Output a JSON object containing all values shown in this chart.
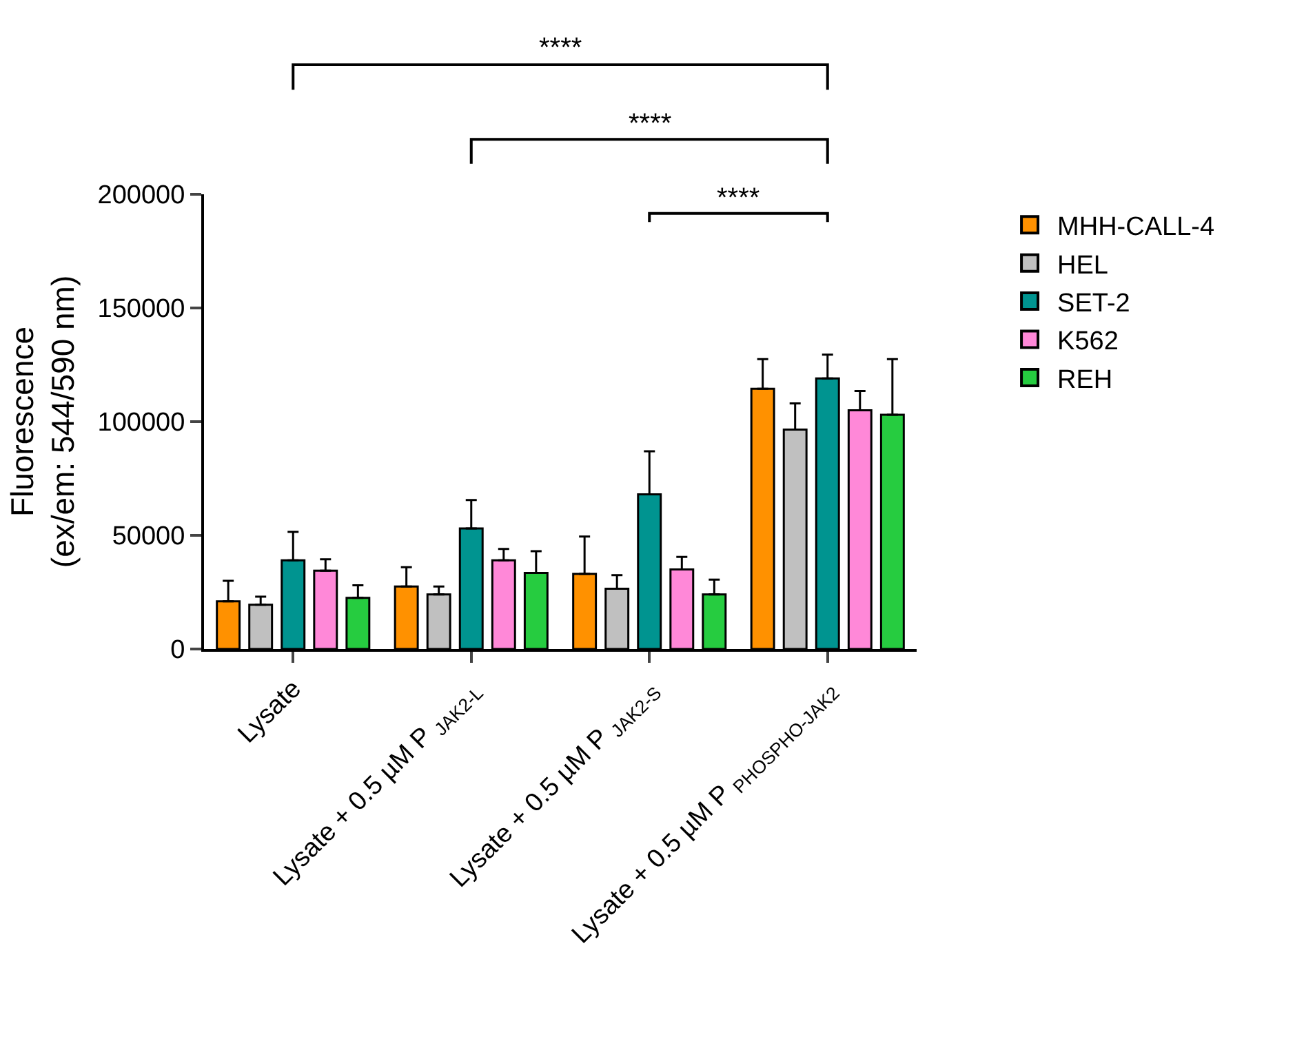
{
  "chart_data": {
    "type": "bar",
    "ylabel": "Fluorescence\n(ex/em: 544/590 nm)",
    "categories": [
      "Lysate",
      "Lysate + 0.5 µM P $_{JAK2-L}$",
      "Lysate + 0.5 µM P $_{JAK2-S}$",
      "Lysate + 0.5 µM P $_{PHOSPHO-JAK2}$"
    ],
    "series": [
      {
        "name": "MHH-CALL-4",
        "color": "#ff9100",
        "values": [
          21000,
          27500,
          33000,
          114500
        ],
        "errors": [
          [
            21000,
            30000
          ],
          [
            27500,
            36000
          ],
          [
            33000,
            49500
          ],
          [
            114500,
            127500
          ]
        ]
      },
      {
        "name": "HEL",
        "color": "#c0c0c0",
        "values": [
          19500,
          24000,
          26500,
          96500
        ],
        "errors": [
          [
            19500,
            23000
          ],
          [
            24000,
            27500
          ],
          [
            26500,
            32500
          ],
          [
            96500,
            108000
          ]
        ]
      },
      {
        "name": "SET-2",
        "color": "#009490",
        "values": [
          39000,
          53000,
          68000,
          119000
        ],
        "errors": [
          [
            39000,
            51500
          ],
          [
            53000,
            65500
          ],
          [
            68000,
            87000
          ],
          [
            119000,
            129500
          ]
        ]
      },
      {
        "name": "K562",
        "color": "#ff88d8",
        "values": [
          34500,
          39000,
          35000,
          105000
        ],
        "errors": [
          [
            34500,
            39500
          ],
          [
            39000,
            44000
          ],
          [
            35000,
            40500
          ],
          [
            105000,
            113500
          ]
        ]
      },
      {
        "name": "REH",
        "color": "#26cc40",
        "values": [
          22500,
          33500,
          24000,
          103000
        ],
        "errors": [
          [
            22500,
            28000
          ],
          [
            33500,
            43000
          ],
          [
            24000,
            30500
          ],
          [
            103000,
            127500
          ]
        ]
      }
    ],
    "ylim": [
      0,
      200000
    ],
    "yticks": [
      0,
      50000,
      100000,
      150000,
      200000
    ],
    "annotations": [
      "****",
      "****",
      "****"
    ],
    "legend": "top right"
  }
}
